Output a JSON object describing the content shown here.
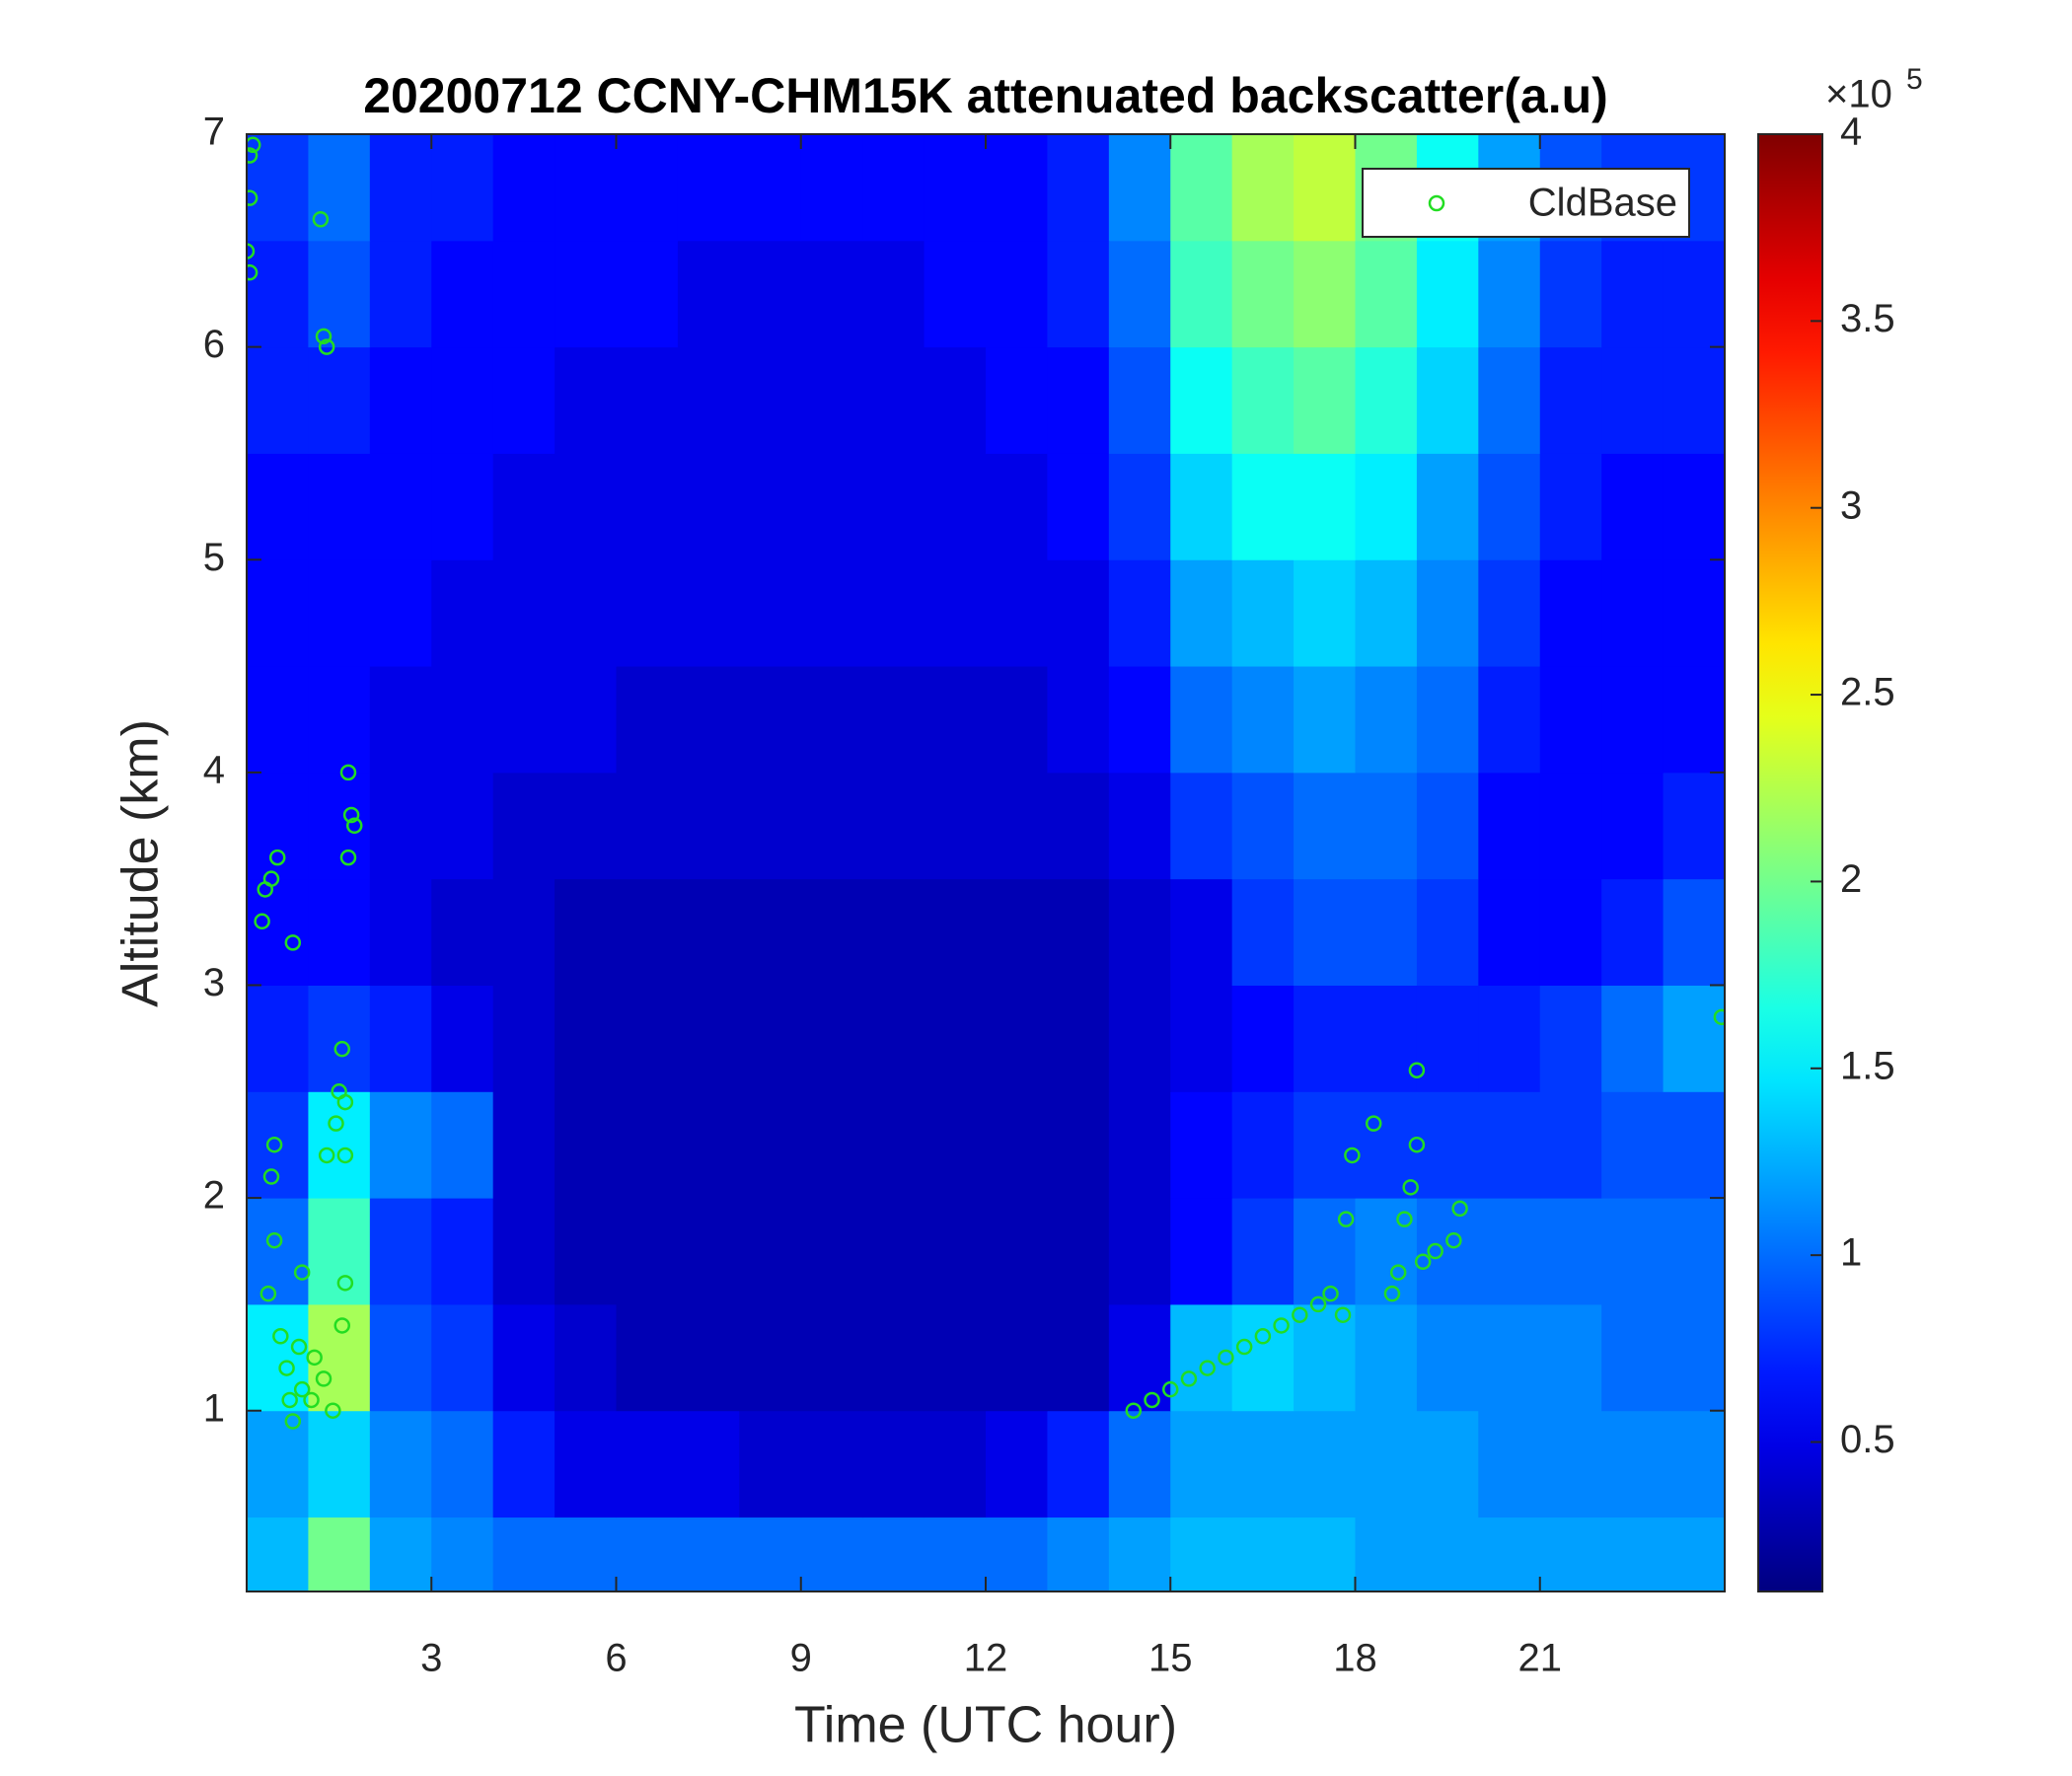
{
  "chart_data": {
    "type": "heatmap",
    "title": "20200712 CCNY-CHM15K attenuated backscatter(a.u)",
    "xlabel": "Time (UTC hour)",
    "ylabel": "Altitude (km)",
    "xlim": [
      0,
      24
    ],
    "ylim": [
      0.15,
      7
    ],
    "xticks": [
      3,
      6,
      9,
      12,
      15,
      18,
      21
    ],
    "yticks": [
      1,
      2,
      3,
      4,
      5,
      6,
      7
    ],
    "colormap": "jet",
    "clim": [
      0.1,
      4
    ],
    "colorbar_ticks": [
      0.5,
      1,
      1.5,
      2,
      2.5,
      3,
      3.5,
      4
    ],
    "colorbar_multiplier": "×10",
    "colorbar_exponent": "5",
    "x_edges": [
      0,
      1,
      2,
      3,
      4,
      5,
      6,
      7,
      8,
      9,
      10,
      11,
      12,
      13,
      14,
      15,
      16,
      17,
      18,
      19,
      20,
      21,
      22,
      23,
      24
    ],
    "y_edges": [
      0,
      0.5,
      1,
      1.5,
      2,
      2.5,
      3,
      3.5,
      4,
      4.5,
      5,
      5.5,
      6,
      6.5,
      7
    ],
    "z": [
      [
        1.3,
        2.0,
        1.2,
        1.1,
        1.0,
        1.0,
        1.0,
        1.0,
        1.0,
        1.0,
        1.0,
        1.0,
        1.0,
        1.1,
        1.2,
        1.3,
        1.3,
        1.3,
        1.2,
        1.2,
        1.2,
        1.2,
        1.2,
        1.2
      ],
      [
        1.2,
        1.4,
        1.1,
        1.0,
        0.7,
        0.5,
        0.5,
        0.5,
        0.4,
        0.4,
        0.4,
        0.4,
        0.5,
        0.7,
        1.0,
        1.2,
        1.2,
        1.2,
        1.2,
        1.2,
        1.1,
        1.1,
        1.1,
        1.1
      ],
      [
        1.5,
        2.2,
        0.9,
        0.8,
        0.5,
        0.4,
        0.3,
        0.3,
        0.3,
        0.3,
        0.3,
        0.3,
        0.3,
        0.3,
        0.5,
        1.3,
        1.4,
        1.3,
        1.2,
        1.1,
        1.1,
        1.1,
        1.0,
        1.0
      ],
      [
        1.0,
        1.8,
        0.8,
        0.7,
        0.4,
        0.3,
        0.3,
        0.3,
        0.3,
        0.3,
        0.3,
        0.3,
        0.3,
        0.3,
        0.4,
        0.6,
        0.8,
        1.0,
        1.1,
        1.0,
        1.0,
        1.0,
        1.0,
        1.0
      ],
      [
        0.8,
        1.5,
        1.1,
        1.0,
        0.4,
        0.3,
        0.3,
        0.3,
        0.3,
        0.3,
        0.3,
        0.3,
        0.3,
        0.3,
        0.4,
        0.6,
        0.7,
        0.8,
        0.8,
        0.8,
        0.8,
        0.8,
        0.9,
        0.9
      ],
      [
        0.7,
        0.8,
        0.7,
        0.5,
        0.4,
        0.3,
        0.3,
        0.3,
        0.3,
        0.3,
        0.3,
        0.3,
        0.3,
        0.3,
        0.4,
        0.5,
        0.6,
        0.7,
        0.7,
        0.7,
        0.7,
        0.8,
        1.0,
        1.2
      ],
      [
        0.6,
        0.6,
        0.5,
        0.4,
        0.4,
        0.3,
        0.3,
        0.3,
        0.3,
        0.3,
        0.3,
        0.3,
        0.3,
        0.3,
        0.4,
        0.5,
        0.8,
        0.9,
        0.9,
        0.8,
        0.6,
        0.6,
        0.7,
        0.9
      ],
      [
        0.6,
        0.6,
        0.5,
        0.5,
        0.4,
        0.4,
        0.4,
        0.4,
        0.4,
        0.4,
        0.4,
        0.4,
        0.4,
        0.4,
        0.5,
        0.8,
        0.9,
        1.0,
        1.0,
        0.9,
        0.6,
        0.6,
        0.6,
        0.7
      ],
      [
        0.6,
        0.6,
        0.5,
        0.5,
        0.5,
        0.5,
        0.4,
        0.4,
        0.4,
        0.4,
        0.4,
        0.4,
        0.4,
        0.5,
        0.6,
        1.0,
        1.1,
        1.2,
        1.1,
        1.0,
        0.7,
        0.6,
        0.6,
        0.6
      ],
      [
        0.6,
        0.6,
        0.6,
        0.5,
        0.5,
        0.5,
        0.5,
        0.5,
        0.5,
        0.5,
        0.5,
        0.5,
        0.5,
        0.5,
        0.7,
        1.2,
        1.3,
        1.4,
        1.3,
        1.1,
        0.8,
        0.6,
        0.6,
        0.6
      ],
      [
        0.6,
        0.6,
        0.6,
        0.6,
        0.5,
        0.5,
        0.5,
        0.5,
        0.5,
        0.5,
        0.5,
        0.5,
        0.5,
        0.6,
        0.8,
        1.4,
        1.6,
        1.6,
        1.5,
        1.2,
        0.9,
        0.7,
        0.6,
        0.6
      ],
      [
        0.7,
        0.7,
        0.6,
        0.6,
        0.6,
        0.5,
        0.5,
        0.5,
        0.5,
        0.5,
        0.5,
        0.5,
        0.6,
        0.6,
        0.9,
        1.6,
        1.8,
        1.9,
        1.7,
        1.4,
        1.0,
        0.7,
        0.7,
        0.7
      ],
      [
        0.7,
        0.9,
        0.7,
        0.6,
        0.6,
        0.6,
        0.6,
        0.5,
        0.5,
        0.5,
        0.5,
        0.6,
        0.6,
        0.7,
        1.0,
        1.8,
        2.0,
        2.1,
        1.9,
        1.5,
        1.1,
        0.8,
        0.7,
        0.7
      ],
      [
        0.8,
        1.0,
        0.7,
        0.7,
        0.6,
        0.6,
        0.6,
        0.6,
        0.6,
        0.6,
        0.6,
        0.6,
        0.6,
        0.7,
        1.1,
        1.9,
        2.2,
        2.3,
        2.0,
        1.6,
        1.2,
        0.9,
        0.8,
        0.8
      ]
    ],
    "legend": "top-right",
    "series": [
      {
        "name": "CldBase",
        "color": "#22dd22",
        "x": [
          0.05,
          0.1,
          0.05,
          0.0,
          0.05,
          1.2,
          1.25,
          1.3,
          0.25,
          0.3,
          0.4,
          0.5,
          0.75,
          1.65,
          1.7,
          1.65,
          1.75,
          0.45,
          0.4,
          0.45,
          0.35,
          0.9,
          1.55,
          1.5,
          1.6,
          1.45,
          1.3,
          1.6,
          1.6,
          1.55,
          0.55,
          0.65,
          0.7,
          0.75,
          0.9,
          1.05,
          1.25,
          1.4,
          0.85,
          1.1,
          14.4,
          14.7,
          15.0,
          15.3,
          15.6,
          15.9,
          16.2,
          16.5,
          16.8,
          17.1,
          17.4,
          17.6,
          17.8,
          17.85,
          17.95,
          18.3,
          18.6,
          18.7,
          18.8,
          18.9,
          19.0,
          19.0,
          19.1,
          19.3,
          19.6,
          19.7,
          23.95
        ],
        "y": [
          6.9,
          6.95,
          6.7,
          6.45,
          6.35,
          6.6,
          6.05,
          6.0,
          3.3,
          3.45,
          3.5,
          3.6,
          3.2,
          4.0,
          3.8,
          3.6,
          3.75,
          2.25,
          2.1,
          1.8,
          1.55,
          1.65,
          2.7,
          2.5,
          2.45,
          2.35,
          2.2,
          2.2,
          1.6,
          1.4,
          1.35,
          1.2,
          1.05,
          0.95,
          1.1,
          1.05,
          1.15,
          1.0,
          1.3,
          1.25,
          1.0,
          1.05,
          1.1,
          1.15,
          1.2,
          1.25,
          1.3,
          1.35,
          1.4,
          1.45,
          1.5,
          1.55,
          1.45,
          1.9,
          2.2,
          2.35,
          1.55,
          1.65,
          1.9,
          2.05,
          2.25,
          2.6,
          1.7,
          1.75,
          1.8,
          1.95,
          2.85
        ]
      }
    ]
  }
}
